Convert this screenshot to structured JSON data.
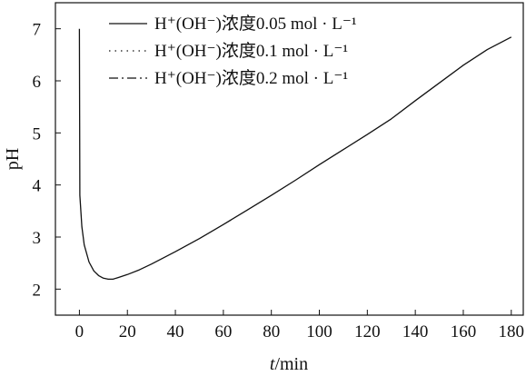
{
  "chart_data": {
    "type": "line",
    "xlabel_italic": "t",
    "xlabel_rest": "/min",
    "ylabel": "pH",
    "xlim": [
      -10,
      185
    ],
    "ylim": [
      1.5,
      7.5
    ],
    "xticks": [
      0,
      20,
      40,
      60,
      80,
      100,
      120,
      140,
      160,
      180
    ],
    "yticks": [
      2,
      3,
      4,
      5,
      6,
      7
    ],
    "legend_position": "top-left",
    "grid": false,
    "series": [
      {
        "name": "H⁺(OH⁻)浓度0.05 mol · L⁻¹",
        "dash": "solid",
        "points": [
          [
            0,
            7.0
          ],
          [
            0.2,
            3.8
          ],
          [
            1,
            3.2
          ],
          [
            2,
            2.85
          ],
          [
            4,
            2.52
          ],
          [
            6,
            2.35
          ],
          [
            8,
            2.26
          ],
          [
            10,
            2.21
          ],
          [
            12,
            2.19
          ],
          [
            14,
            2.19
          ],
          [
            16,
            2.22
          ],
          [
            20,
            2.28
          ],
          [
            25,
            2.37
          ],
          [
            30,
            2.48
          ],
          [
            40,
            2.72
          ],
          [
            50,
            2.97
          ],
          [
            60,
            3.24
          ],
          [
            70,
            3.52
          ],
          [
            80,
            3.8
          ],
          [
            90,
            4.09
          ],
          [
            100,
            4.39
          ],
          [
            110,
            4.68
          ],
          [
            120,
            4.97
          ],
          [
            130,
            5.27
          ],
          [
            140,
            5.62
          ],
          [
            150,
            5.96
          ],
          [
            160,
            6.3
          ],
          [
            170,
            6.6
          ],
          [
            180,
            6.84
          ]
        ]
      },
      {
        "name": "H⁺(OH⁻)浓度0.1 mol · L⁻¹",
        "dash": "dotted",
        "points": []
      },
      {
        "name": "H⁺(OH⁻)浓度0.2 mol · L⁻¹",
        "dash": "dash-dot",
        "points": []
      }
    ]
  }
}
